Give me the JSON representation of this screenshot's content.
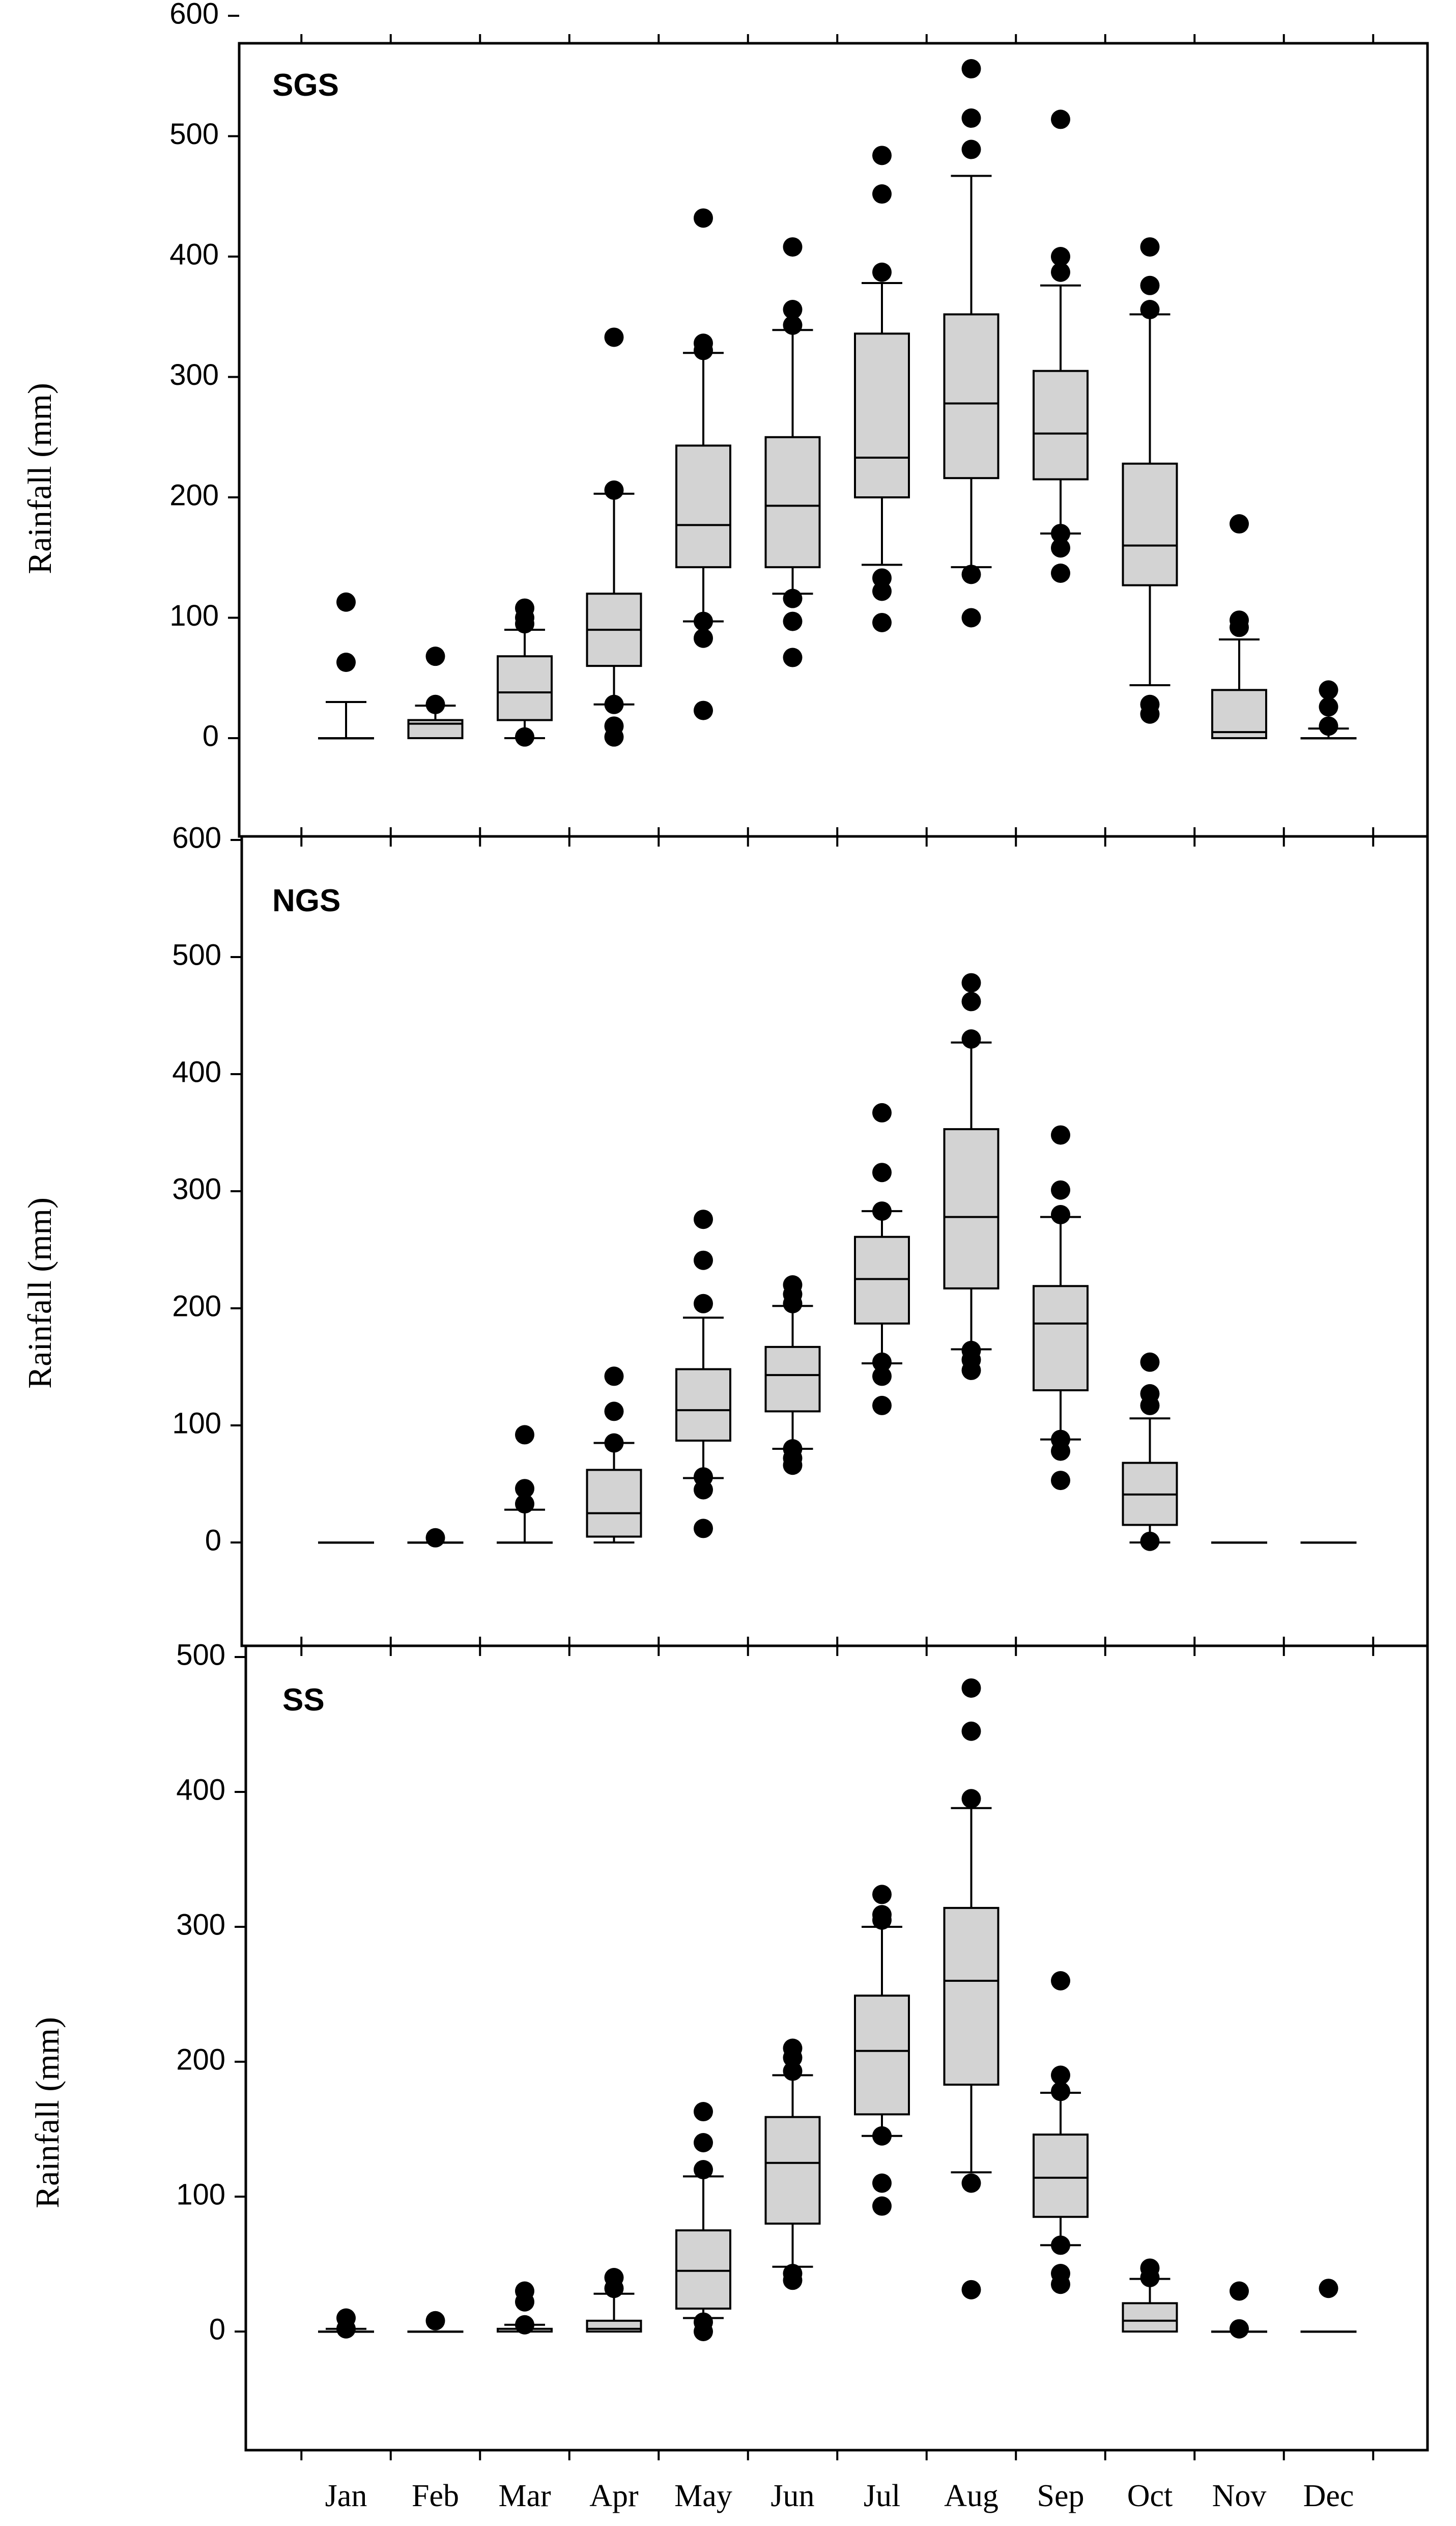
{
  "chart_data": [
    {
      "type": "box",
      "title": "SGS",
      "ylabel": "Rainfall (mm)",
      "xlabel": "",
      "ylim": [
        -90,
        600
      ],
      "yticks": [
        0,
        100,
        200,
        300,
        400,
        500,
        600
      ],
      "categories": [
        "Jan",
        "Feb",
        "Mar",
        "Apr",
        "May",
        "Jun",
        "Jul",
        "Aug",
        "Sep",
        "Oct",
        "Nov",
        "Dec"
      ],
      "boxes": [
        {
          "whislo": 0,
          "q1": 0,
          "med": 0,
          "q3": 0,
          "whishi": 30,
          "fliers": [
            63,
            113
          ]
        },
        {
          "whislo": 0,
          "q1": 0,
          "med": 12,
          "q3": 15,
          "whishi": 27,
          "fliers": [
            28,
            68
          ]
        },
        {
          "whislo": 0,
          "q1": 15,
          "med": 38,
          "q3": 68,
          "whishi": 90,
          "fliers": [
            1,
            95,
            100,
            108
          ]
        },
        {
          "whislo": 28,
          "q1": 60,
          "med": 90,
          "q3": 120,
          "whishi": 203,
          "fliers": [
            1,
            10,
            28,
            206,
            333
          ]
        },
        {
          "whislo": 97,
          "q1": 142,
          "med": 177,
          "q3": 243,
          "whishi": 320,
          "fliers": [
            23,
            83,
            97,
            322,
            328,
            432
          ]
        },
        {
          "whislo": 120,
          "q1": 142,
          "med": 193,
          "q3": 250,
          "whishi": 339,
          "fliers": [
            67,
            97,
            116,
            343,
            356,
            408
          ]
        },
        {
          "whislo": 144,
          "q1": 200,
          "med": 233,
          "q3": 336,
          "whishi": 378,
          "fliers": [
            96,
            122,
            133,
            387,
            452,
            484
          ]
        },
        {
          "whislo": 142,
          "q1": 216,
          "med": 278,
          "q3": 352,
          "whishi": 467,
          "fliers": [
            100,
            136,
            489,
            515,
            556
          ]
        },
        {
          "whislo": 170,
          "q1": 215,
          "med": 253,
          "q3": 305,
          "whishi": 376,
          "fliers": [
            137,
            158,
            170,
            387,
            400,
            514
          ]
        },
        {
          "whislo": 44,
          "q1": 127,
          "med": 160,
          "q3": 228,
          "whishi": 352,
          "fliers": [
            20,
            28,
            356,
            376,
            408
          ]
        },
        {
          "whislo": 0,
          "q1": 0,
          "med": 5,
          "q3": 40,
          "whishi": 82,
          "fliers": [
            92,
            98,
            178
          ]
        },
        {
          "whislo": 0,
          "q1": 0,
          "med": 0,
          "q3": 0,
          "whishi": 8,
          "fliers": [
            10,
            26,
            40
          ]
        }
      ]
    },
    {
      "type": "box",
      "title": "NGS",
      "ylabel": "Rainfall (mm)",
      "xlabel": "",
      "ylim": [
        -90,
        600
      ],
      "yticks": [
        0,
        100,
        200,
        300,
        400,
        500,
        600
      ],
      "categories": [
        "Jan",
        "Feb",
        "Mar",
        "Apr",
        "May",
        "Jun",
        "Jul",
        "Aug",
        "Sep",
        "Oct",
        "Nov",
        "Dec"
      ],
      "boxes": [
        {
          "whislo": 0,
          "q1": 0,
          "med": 0,
          "q3": 0,
          "whishi": 0,
          "fliers": []
        },
        {
          "whislo": 0,
          "q1": 0,
          "med": 0,
          "q3": 0,
          "whishi": 0,
          "fliers": [
            4
          ]
        },
        {
          "whislo": 0,
          "q1": 0,
          "med": 0,
          "q3": 0,
          "whishi": 28,
          "fliers": [
            33,
            46,
            92
          ]
        },
        {
          "whislo": 0,
          "q1": 5,
          "med": 25,
          "q3": 62,
          "whishi": 85,
          "fliers": [
            85,
            112,
            142
          ]
        },
        {
          "whislo": 55,
          "q1": 87,
          "med": 113,
          "q3": 148,
          "whishi": 192,
          "fliers": [
            12,
            45,
            56,
            204,
            241,
            276
          ]
        },
        {
          "whislo": 80,
          "q1": 112,
          "med": 143,
          "q3": 167,
          "whishi": 202,
          "fliers": [
            66,
            72,
            80,
            204,
            212,
            220
          ]
        },
        {
          "whislo": 153,
          "q1": 187,
          "med": 225,
          "q3": 261,
          "whishi": 283,
          "fliers": [
            117,
            142,
            154,
            283,
            316,
            367
          ]
        },
        {
          "whislo": 165,
          "q1": 217,
          "med": 278,
          "q3": 353,
          "whishi": 427,
          "fliers": [
            147,
            156,
            164,
            430,
            462,
            478
          ]
        },
        {
          "whislo": 88,
          "q1": 130,
          "med": 187,
          "q3": 219,
          "whishi": 278,
          "fliers": [
            53,
            78,
            88,
            280,
            301,
            348
          ]
        },
        {
          "whislo": 0,
          "q1": 15,
          "med": 41,
          "q3": 68,
          "whishi": 106,
          "fliers": [
            1,
            117,
            127,
            154
          ]
        },
        {
          "whislo": 0,
          "q1": 0,
          "med": 0,
          "q3": 0,
          "whishi": 0,
          "fliers": []
        },
        {
          "whislo": 0,
          "q1": 0,
          "med": 0,
          "q3": 0,
          "whishi": 0,
          "fliers": []
        }
      ]
    },
    {
      "type": "box",
      "title": "SS",
      "ylabel": "Rainfall (mm)",
      "xlabel": "",
      "ylim": [
        -90,
        500
      ],
      "yticks": [
        0,
        100,
        200,
        300,
        400,
        500
      ],
      "categories": [
        "Jan",
        "Feb",
        "Mar",
        "Apr",
        "May",
        "Jun",
        "Jul",
        "Aug",
        "Sep",
        "Oct",
        "Nov",
        "Dec"
      ],
      "boxes": [
        {
          "whislo": 0,
          "q1": 0,
          "med": 0,
          "q3": 0,
          "whishi": 2,
          "fliers": [
            2,
            10
          ]
        },
        {
          "whislo": 0,
          "q1": 0,
          "med": 0,
          "q3": 0,
          "whishi": 0,
          "fliers": [
            8
          ]
        },
        {
          "whislo": 0,
          "q1": 0,
          "med": 0,
          "q3": 2,
          "whishi": 5,
          "fliers": [
            5,
            22,
            30
          ]
        },
        {
          "whislo": 0,
          "q1": 0,
          "med": 2,
          "q3": 8,
          "whishi": 28,
          "fliers": [
            32,
            40
          ]
        },
        {
          "whislo": 10,
          "q1": 17,
          "med": 45,
          "q3": 75,
          "whishi": 115,
          "fliers": [
            0,
            7,
            120,
            140,
            163
          ]
        },
        {
          "whislo": 48,
          "q1": 80,
          "med": 125,
          "q3": 159,
          "whishi": 190,
          "fliers": [
            38,
            43,
            193,
            203,
            210
          ]
        },
        {
          "whislo": 145,
          "q1": 161,
          "med": 208,
          "q3": 249,
          "whishi": 300,
          "fliers": [
            93,
            110,
            145,
            305,
            309,
            324
          ]
        },
        {
          "whislo": 118,
          "q1": 183,
          "med": 260,
          "q3": 314,
          "whishi": 388,
          "fliers": [
            31,
            110,
            395,
            445,
            477
          ]
        },
        {
          "whislo": 64,
          "q1": 85,
          "med": 114,
          "q3": 146,
          "whishi": 177,
          "fliers": [
            35,
            43,
            64,
            178,
            190,
            260
          ]
        },
        {
          "whislo": 0,
          "q1": 0,
          "med": 8,
          "q3": 21,
          "whishi": 39,
          "fliers": [
            40,
            47
          ]
        },
        {
          "whislo": 0,
          "q1": 0,
          "med": 0,
          "q3": 0,
          "whishi": 0,
          "fliers": [
            2,
            30
          ]
        },
        {
          "whislo": 0,
          "q1": 0,
          "med": 0,
          "q3": 0,
          "whishi": 0,
          "fliers": [
            32
          ]
        }
      ]
    }
  ]
}
